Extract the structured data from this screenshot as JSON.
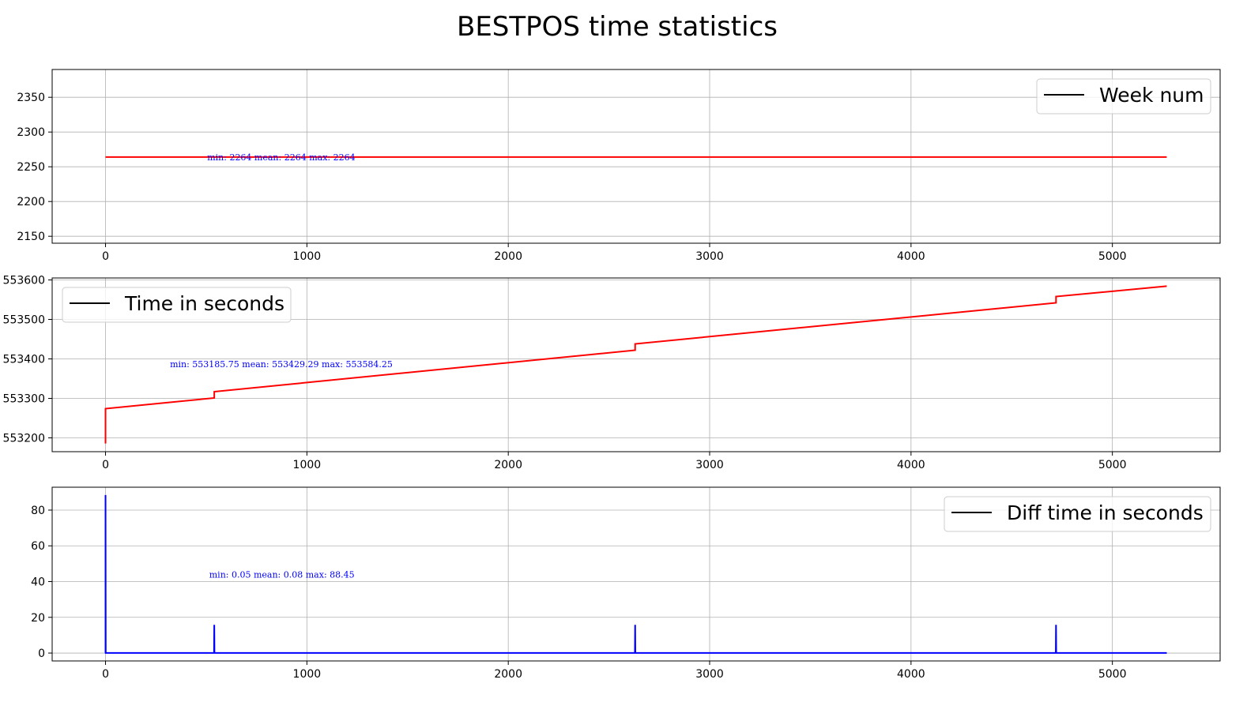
{
  "figure": {
    "title": "BESTPOS time statistics"
  },
  "chart_data": [
    {
      "type": "line",
      "legend": {
        "label": "Week num",
        "placement": "upper right",
        "handle_color": "#000000"
      },
      "color": "#ff0000",
      "xlim": [
        -265,
        5535
      ],
      "ylim": [
        2140,
        2390
      ],
      "xticks": [
        0,
        1000,
        2000,
        3000,
        4000,
        5000
      ],
      "yticks": [
        2150,
        2200,
        2250,
        2300,
        2350
      ],
      "grid": true,
      "x": [
        0,
        5270
      ],
      "y": [
        2264,
        2264
      ],
      "annotation": {
        "text": "min: 2264  mean: 2264  max: 2264",
        "x": 505,
        "y": 2264,
        "color": "#0000ff"
      }
    },
    {
      "type": "line",
      "legend": {
        "label": "Time in seconds",
        "placement": "upper left",
        "handle_color": "#000000"
      },
      "color": "#ff0000",
      "xlim": [
        -265,
        5535
      ],
      "ylim": [
        553165,
        553605
      ],
      "xticks": [
        0,
        1000,
        2000,
        3000,
        4000,
        5000
      ],
      "yticks": [
        553200,
        553300,
        553400,
        553500,
        553600
      ],
      "grid": true,
      "x": [
        0,
        0,
        540,
        540,
        2630,
        2630,
        4720,
        4720,
        5270
      ],
      "y": [
        553185.75,
        553274,
        553301,
        553317,
        553422,
        553438,
        553542,
        553558,
        553584.25
      ],
      "annotation": {
        "text": "min: 553185.75  mean: 553429.29  max: 553584.25",
        "x": 320,
        "y": 553387,
        "color": "#0000ff"
      }
    },
    {
      "type": "line",
      "legend": {
        "label": "Diff time in seconds",
        "placement": "upper right",
        "handle_color": "#000000"
      },
      "color": "#0000ff",
      "xlim": [
        -265,
        5535
      ],
      "ylim": [
        -4.4,
        92.8
      ],
      "xticks": [
        0,
        1000,
        2000,
        3000,
        4000,
        5000
      ],
      "yticks": [
        0,
        20,
        40,
        60,
        80
      ],
      "grid": true,
      "x": [
        0,
        0,
        1,
        539,
        540,
        541,
        2629,
        2630,
        2631,
        4719,
        4720,
        4721,
        5270
      ],
      "y": [
        0.05,
        88.45,
        0.05,
        0.05,
        15.8,
        0.05,
        0.05,
        15.8,
        0.05,
        0.05,
        15.8,
        0.05,
        0.05
      ],
      "annotation": {
        "text": "min: 0.05  mean: 0.08  max: 88.45",
        "x": 515,
        "y": 44,
        "color": "#0000ff"
      }
    }
  ]
}
